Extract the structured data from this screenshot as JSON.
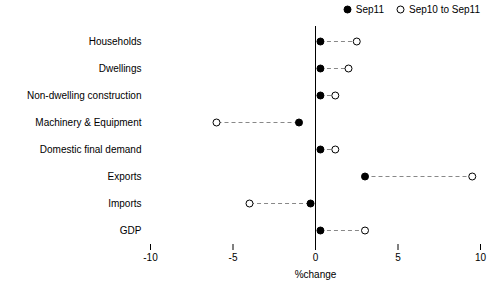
{
  "chart_data": {
    "type": "dumbbell",
    "categories": [
      "Households",
      "Dwellings",
      "Non-dwelling construction",
      "Machinery & Equipment",
      "Domestic final demand",
      "Exports",
      "Imports",
      "GDP"
    ],
    "series": [
      {
        "name": "Sep11",
        "color": "black",
        "marker": "circle",
        "values": [
          0.3,
          0.3,
          0.3,
          -1.0,
          0.3,
          3.0,
          -0.3,
          0.3
        ]
      },
      {
        "name": "Sep10 to Sep11",
        "color": "white",
        "marker": "circle",
        "values": [
          2.5,
          2.0,
          1.2,
          -6.0,
          1.2,
          9.5,
          -4.0,
          3.0
        ]
      }
    ],
    "xlabel": "%change",
    "xlim": [
      -10,
      10
    ],
    "xticks": [
      -10,
      -5,
      0,
      5,
      10
    ],
    "color": "#888888",
    "line_style": "dashed",
    "grid": false,
    "legend": "upper right"
  }
}
